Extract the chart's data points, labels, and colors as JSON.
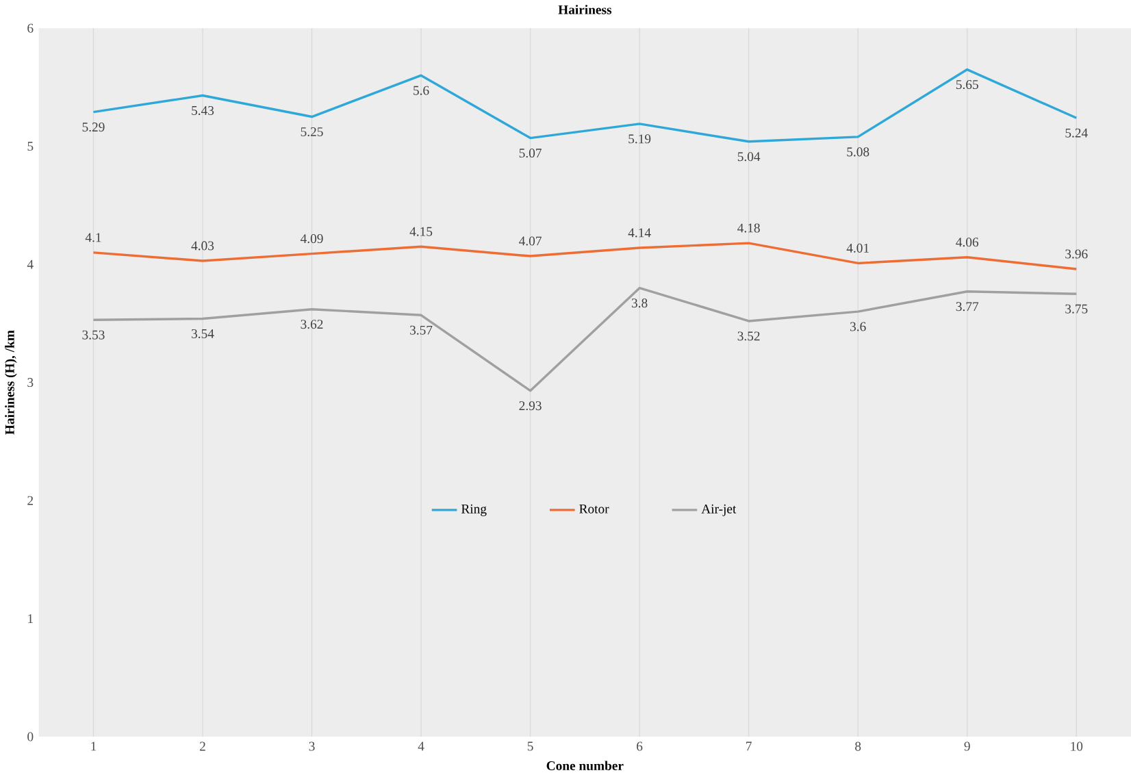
{
  "chart_data": {
    "type": "line",
    "title": "Hairiness",
    "xlabel": "Cone number",
    "ylabel": "Hairiness (H), /km",
    "categories": [
      "1",
      "2",
      "3",
      "4",
      "5",
      "6",
      "7",
      "8",
      "9",
      "10"
    ],
    "series": [
      {
        "name": "Ring",
        "color": "#2ea8d8",
        "values": [
          5.29,
          5.43,
          5.25,
          5.6,
          5.07,
          5.19,
          5.04,
          5.08,
          5.65,
          5.24
        ]
      },
      {
        "name": "Rotor",
        "color": "#ee6d35",
        "values": [
          4.1,
          4.03,
          4.09,
          4.15,
          4.07,
          4.14,
          4.18,
          4.01,
          4.06,
          3.96
        ]
      },
      {
        "name": "Air-jet",
        "color": "#a0a0a0",
        "values": [
          3.53,
          3.54,
          3.62,
          3.57,
          2.93,
          3.8,
          3.52,
          3.6,
          3.77,
          3.75
        ]
      }
    ],
    "ylim": [
      0,
      6
    ],
    "yticks": [
      0,
      1,
      2,
      3,
      4,
      5,
      6
    ],
    "grid": "x",
    "legend": "center",
    "data_labels": true,
    "marker": "none",
    "line_style": "solid"
  }
}
